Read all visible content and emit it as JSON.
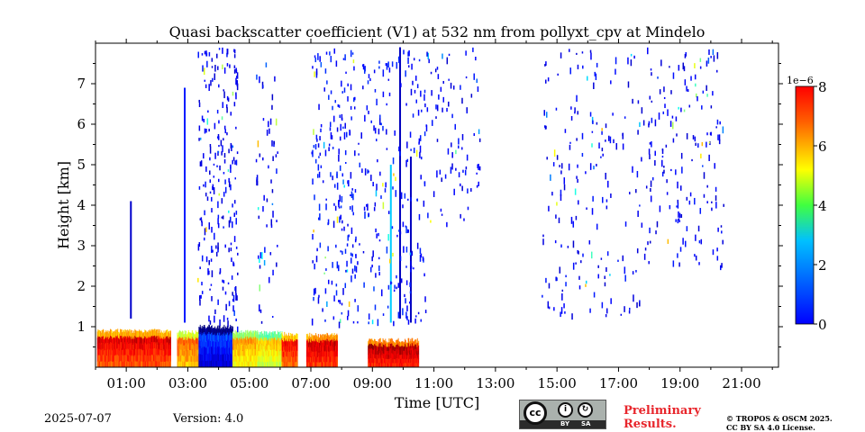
{
  "chart_data": {
    "type": "heatmap",
    "title": "Quasi backscatter coefficient (V1) at 532 nm from pollyxt_cpv at Mindelo",
    "xlabel": "Time [UTC]",
    "ylabel": "Height [km]",
    "xlim_hours": [
      0.0,
      22.2
    ],
    "ylim_km": [
      0.0,
      8.0
    ],
    "x_tick_hours": [
      1,
      3,
      5,
      7,
      9,
      11,
      13,
      15,
      17,
      19,
      21
    ],
    "x_tick_labels": [
      "01:00",
      "03:00",
      "05:00",
      "07:00",
      "09:00",
      "11:00",
      "13:00",
      "15:00",
      "17:00",
      "19:00",
      "21:00"
    ],
    "y_ticks": [
      1,
      2,
      3,
      4,
      5,
      6,
      7
    ],
    "y_tick_labels": [
      "1",
      "2",
      "3",
      "4",
      "5",
      "6",
      "7"
    ],
    "colorbar": {
      "range": [
        0,
        8
      ],
      "ticks": [
        0,
        2,
        4,
        6,
        8
      ],
      "tick_labels": [
        "0",
        "2",
        "4",
        "6",
        "8"
      ],
      "scale_label": "1e−6",
      "colormap": "jet"
    },
    "low_layer_segments": [
      {
        "start_h": 0.05,
        "end_h": 2.45,
        "top_km": 0.95,
        "value": 6.4
      },
      {
        "start_h": 2.65,
        "end_h": 3.35,
        "top_km": 0.92,
        "value": 5.5
      },
      {
        "start_h": 3.35,
        "end_h": 4.45,
        "top_km": 1.05,
        "value": 0.7
      },
      {
        "start_h": 4.45,
        "end_h": 5.25,
        "top_km": 0.92,
        "value": 5.0
      },
      {
        "start_h": 5.25,
        "end_h": 6.05,
        "top_km": 0.9,
        "value": 4.6
      },
      {
        "start_h": 6.05,
        "end_h": 6.55,
        "top_km": 0.88,
        "value": 6.2
      },
      {
        "start_h": 6.85,
        "end_h": 7.85,
        "top_km": 0.85,
        "value": 6.6
      },
      {
        "start_h": 8.85,
        "end_h": 10.5,
        "top_km": 0.72,
        "value": 6.8
      }
    ],
    "scatter_clusters": [
      {
        "start_h": 3.3,
        "end_h": 4.6,
        "bottom_km": 1.0,
        "top_km": 7.9,
        "count": 230,
        "value": 0.6
      },
      {
        "start_h": 5.2,
        "end_h": 5.9,
        "bottom_km": 1.1,
        "top_km": 7.9,
        "count": 60,
        "value": 0.6
      },
      {
        "start_h": 7.0,
        "end_h": 10.8,
        "bottom_km": 1.1,
        "top_km": 7.9,
        "count": 420,
        "value": 0.8
      },
      {
        "start_h": 10.8,
        "end_h": 12.5,
        "bottom_km": 3.5,
        "top_km": 7.9,
        "count": 80,
        "value": 0.6
      },
      {
        "start_h": 14.5,
        "end_h": 18.0,
        "bottom_km": 1.3,
        "top_km": 7.9,
        "count": 200,
        "value": 0.6
      },
      {
        "start_h": 18.0,
        "end_h": 20.4,
        "bottom_km": 2.5,
        "top_km": 7.9,
        "count": 160,
        "value": 0.6
      }
    ],
    "vertical_streaks": [
      {
        "time_h": 1.15,
        "bottom_km": 1.2,
        "top_km": 4.1,
        "value": 0.6
      },
      {
        "time_h": 2.9,
        "bottom_km": 1.1,
        "top_km": 6.9,
        "value": 1.2
      },
      {
        "time_h": 9.6,
        "bottom_km": 1.1,
        "top_km": 5.0,
        "value": 2.6
      },
      {
        "time_h": 9.9,
        "bottom_km": 1.2,
        "top_km": 7.9,
        "value": 0.5
      },
      {
        "time_h": 10.25,
        "bottom_km": 1.1,
        "top_km": 5.2,
        "value": 0.5
      }
    ]
  },
  "footer": {
    "date": "2025-07-07",
    "version": "Version: 4.0",
    "license_badge": {
      "main": "cc",
      "by": "BY",
      "sa": "SA"
    },
    "preliminary_line1": "Preliminary",
    "preliminary_line2": "Results.",
    "copyright_line1": "© TROPOS & OSCM 2025.",
    "copyright_line2": "CC BY SA 4.0 License."
  }
}
